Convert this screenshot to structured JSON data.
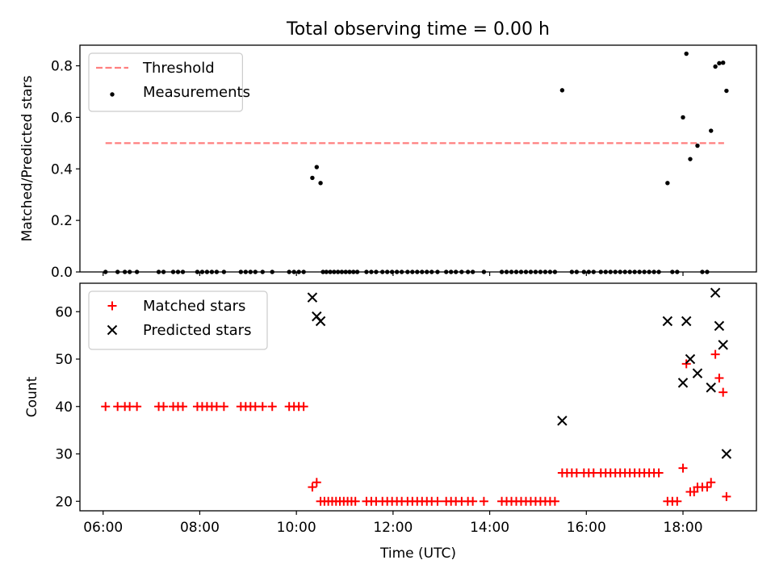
{
  "title": "Total observing time = 0.00 h",
  "chart_data": [
    {
      "type": "scatter",
      "ylabel": "Matched/Predicted stars",
      "ylim": [
        0,
        0.88
      ],
      "yticks": [
        0.0,
        0.2,
        0.4,
        0.6,
        0.8
      ],
      "ytick_labels": [
        "0.0",
        "0.2",
        "0.4",
        "0.6",
        "0.8"
      ],
      "xlim": [
        5.52,
        19.52
      ],
      "xticks": [
        6,
        8,
        10,
        12,
        14,
        16,
        18
      ],
      "legend_position": "top-left",
      "threshold": {
        "name": "Threshold",
        "value": 0.5,
        "x_start": 6.05,
        "x_end": 18.85,
        "color": "#ff7f7f"
      },
      "series": [
        {
          "name": "Measurements",
          "color": "#000000",
          "marker": "dot",
          "points": [
            [
              6.05,
              0
            ],
            [
              6.3,
              0
            ],
            [
              6.45,
              0
            ],
            [
              6.55,
              0
            ],
            [
              6.7,
              0
            ],
            [
              7.15,
              0
            ],
            [
              7.25,
              0
            ],
            [
              7.45,
              0
            ],
            [
              7.55,
              0
            ],
            [
              7.65,
              0
            ],
            [
              7.95,
              0
            ],
            [
              8.05,
              0
            ],
            [
              8.15,
              0
            ],
            [
              8.25,
              0
            ],
            [
              8.35,
              0
            ],
            [
              8.5,
              0
            ],
            [
              8.85,
              0
            ],
            [
              8.95,
              0
            ],
            [
              9.05,
              0
            ],
            [
              9.15,
              0
            ],
            [
              9.3,
              0
            ],
            [
              9.5,
              0
            ],
            [
              9.85,
              0
            ],
            [
              9.95,
              0
            ],
            [
              10.05,
              0
            ],
            [
              10.15,
              0
            ],
            [
              10.33,
              0.365
            ],
            [
              10.42,
              0.407
            ],
            [
              10.5,
              0.345
            ],
            [
              10.55,
              0
            ],
            [
              10.62,
              0
            ],
            [
              10.7,
              0
            ],
            [
              10.78,
              0
            ],
            [
              10.86,
              0
            ],
            [
              10.94,
              0
            ],
            [
              11.02,
              0
            ],
            [
              11.1,
              0
            ],
            [
              11.18,
              0
            ],
            [
              11.26,
              0
            ],
            [
              11.45,
              0
            ],
            [
              11.55,
              0
            ],
            [
              11.65,
              0
            ],
            [
              11.78,
              0
            ],
            [
              11.88,
              0
            ],
            [
              11.98,
              0
            ],
            [
              12.08,
              0
            ],
            [
              12.18,
              0
            ],
            [
              12.3,
              0
            ],
            [
              12.4,
              0
            ],
            [
              12.5,
              0
            ],
            [
              12.6,
              0
            ],
            [
              12.7,
              0
            ],
            [
              12.8,
              0
            ],
            [
              12.92,
              0
            ],
            [
              13.1,
              0
            ],
            [
              13.2,
              0
            ],
            [
              13.3,
              0
            ],
            [
              13.42,
              0
            ],
            [
              13.55,
              0
            ],
            [
              13.65,
              0
            ],
            [
              13.88,
              0
            ],
            [
              14.25,
              0
            ],
            [
              14.35,
              0
            ],
            [
              14.45,
              0
            ],
            [
              14.55,
              0
            ],
            [
              14.65,
              0
            ],
            [
              14.75,
              0
            ],
            [
              14.85,
              0
            ],
            [
              14.95,
              0
            ],
            [
              15.05,
              0
            ],
            [
              15.15,
              0
            ],
            [
              15.25,
              0
            ],
            [
              15.35,
              0
            ],
            [
              15.5,
              0.705
            ],
            [
              15.7,
              0
            ],
            [
              15.8,
              0
            ],
            [
              15.95,
              0
            ],
            [
              16.05,
              0
            ],
            [
              16.15,
              0
            ],
            [
              16.3,
              0
            ],
            [
              16.4,
              0
            ],
            [
              16.5,
              0
            ],
            [
              16.6,
              0
            ],
            [
              16.7,
              0
            ],
            [
              16.8,
              0
            ],
            [
              16.9,
              0
            ],
            [
              17.0,
              0
            ],
            [
              17.1,
              0
            ],
            [
              17.2,
              0
            ],
            [
              17.3,
              0
            ],
            [
              17.4,
              0
            ],
            [
              17.5,
              0
            ],
            [
              17.68,
              0.345
            ],
            [
              17.78,
              0
            ],
            [
              17.88,
              0
            ],
            [
              18.0,
              0.6
            ],
            [
              18.07,
              0.847
            ],
            [
              18.15,
              0.438
            ],
            [
              18.3,
              0.49
            ],
            [
              18.4,
              0
            ],
            [
              18.5,
              0
            ],
            [
              18.58,
              0.548
            ],
            [
              18.67,
              0.797
            ],
            [
              18.75,
              0.81
            ],
            [
              18.83,
              0.812
            ],
            [
              18.9,
              0.703
            ]
          ]
        }
      ]
    },
    {
      "type": "scatter",
      "ylabel": "Count",
      "xlabel": "Time (UTC)",
      "ylim": [
        18,
        66
      ],
      "yticks": [
        20,
        30,
        40,
        50,
        60
      ],
      "ytick_labels": [
        "20",
        "30",
        "40",
        "50",
        "60"
      ],
      "xlim": [
        5.52,
        19.52
      ],
      "xticks": [
        6,
        8,
        10,
        12,
        14,
        16,
        18
      ],
      "xtick_labels": [
        "06:00",
        "08:00",
        "10:00",
        "12:00",
        "14:00",
        "16:00",
        "18:00"
      ],
      "legend_position": "top-left",
      "series": [
        {
          "name": "Matched stars",
          "color": "#ff0000",
          "marker": "plus",
          "points": [
            [
              6.05,
              40
            ],
            [
              6.3,
              40
            ],
            [
              6.45,
              40
            ],
            [
              6.55,
              40
            ],
            [
              6.7,
              40
            ],
            [
              7.15,
              40
            ],
            [
              7.25,
              40
            ],
            [
              7.45,
              40
            ],
            [
              7.55,
              40
            ],
            [
              7.65,
              40
            ],
            [
              7.95,
              40
            ],
            [
              8.05,
              40
            ],
            [
              8.15,
              40
            ],
            [
              8.25,
              40
            ],
            [
              8.35,
              40
            ],
            [
              8.5,
              40
            ],
            [
              8.85,
              40
            ],
            [
              8.95,
              40
            ],
            [
              9.05,
              40
            ],
            [
              9.15,
              40
            ],
            [
              9.3,
              40
            ],
            [
              9.5,
              40
            ],
            [
              9.85,
              40
            ],
            [
              9.95,
              40
            ],
            [
              10.05,
              40
            ],
            [
              10.15,
              40
            ],
            [
              10.33,
              23
            ],
            [
              10.42,
              24
            ],
            [
              10.5,
              20
            ],
            [
              10.58,
              20
            ],
            [
              10.66,
              20
            ],
            [
              10.74,
              20
            ],
            [
              10.82,
              20
            ],
            [
              10.9,
              20
            ],
            [
              10.98,
              20
            ],
            [
              11.06,
              20
            ],
            [
              11.14,
              20
            ],
            [
              11.22,
              20
            ],
            [
              11.45,
              20
            ],
            [
              11.55,
              20
            ],
            [
              11.65,
              20
            ],
            [
              11.78,
              20
            ],
            [
              11.88,
              20
            ],
            [
              11.98,
              20
            ],
            [
              12.08,
              20
            ],
            [
              12.18,
              20
            ],
            [
              12.3,
              20
            ],
            [
              12.4,
              20
            ],
            [
              12.5,
              20
            ],
            [
              12.6,
              20
            ],
            [
              12.7,
              20
            ],
            [
              12.8,
              20
            ],
            [
              12.92,
              20
            ],
            [
              13.1,
              20
            ],
            [
              13.2,
              20
            ],
            [
              13.3,
              20
            ],
            [
              13.42,
              20
            ],
            [
              13.55,
              20
            ],
            [
              13.65,
              20
            ],
            [
              13.88,
              20
            ],
            [
              14.25,
              20
            ],
            [
              14.35,
              20
            ],
            [
              14.45,
              20
            ],
            [
              14.55,
              20
            ],
            [
              14.65,
              20
            ],
            [
              14.75,
              20
            ],
            [
              14.85,
              20
            ],
            [
              14.95,
              20
            ],
            [
              15.05,
              20
            ],
            [
              15.15,
              20
            ],
            [
              15.25,
              20
            ],
            [
              15.35,
              20
            ],
            [
              15.5,
              26
            ],
            [
              15.6,
              26
            ],
            [
              15.7,
              26
            ],
            [
              15.8,
              26
            ],
            [
              15.95,
              26
            ],
            [
              16.05,
              26
            ],
            [
              16.15,
              26
            ],
            [
              16.3,
              26
            ],
            [
              16.4,
              26
            ],
            [
              16.5,
              26
            ],
            [
              16.6,
              26
            ],
            [
              16.7,
              26
            ],
            [
              16.8,
              26
            ],
            [
              16.9,
              26
            ],
            [
              17.0,
              26
            ],
            [
              17.1,
              26
            ],
            [
              17.2,
              26
            ],
            [
              17.3,
              26
            ],
            [
              17.4,
              26
            ],
            [
              17.5,
              26
            ],
            [
              17.68,
              20
            ],
            [
              17.78,
              20
            ],
            [
              17.88,
              20
            ],
            [
              18.0,
              27
            ],
            [
              18.07,
              49
            ],
            [
              18.15,
              22
            ],
            [
              18.23,
              22
            ],
            [
              18.3,
              23
            ],
            [
              18.4,
              23
            ],
            [
              18.5,
              23
            ],
            [
              18.58,
              24
            ],
            [
              18.67,
              51
            ],
            [
              18.75,
              46
            ],
            [
              18.83,
              43
            ],
            [
              18.9,
              21
            ]
          ]
        },
        {
          "name": "Predicted stars",
          "color": "#000000",
          "marker": "x",
          "points": [
            [
              10.33,
              63
            ],
            [
              10.42,
              59
            ],
            [
              10.5,
              58
            ],
            [
              15.5,
              37
            ],
            [
              17.68,
              58
            ],
            [
              18.0,
              45
            ],
            [
              18.07,
              58
            ],
            [
              18.15,
              50
            ],
            [
              18.3,
              47
            ],
            [
              18.58,
              44
            ],
            [
              18.67,
              64
            ],
            [
              18.75,
              57
            ],
            [
              18.83,
              53
            ],
            [
              18.9,
              30
            ]
          ]
        }
      ]
    }
  ]
}
